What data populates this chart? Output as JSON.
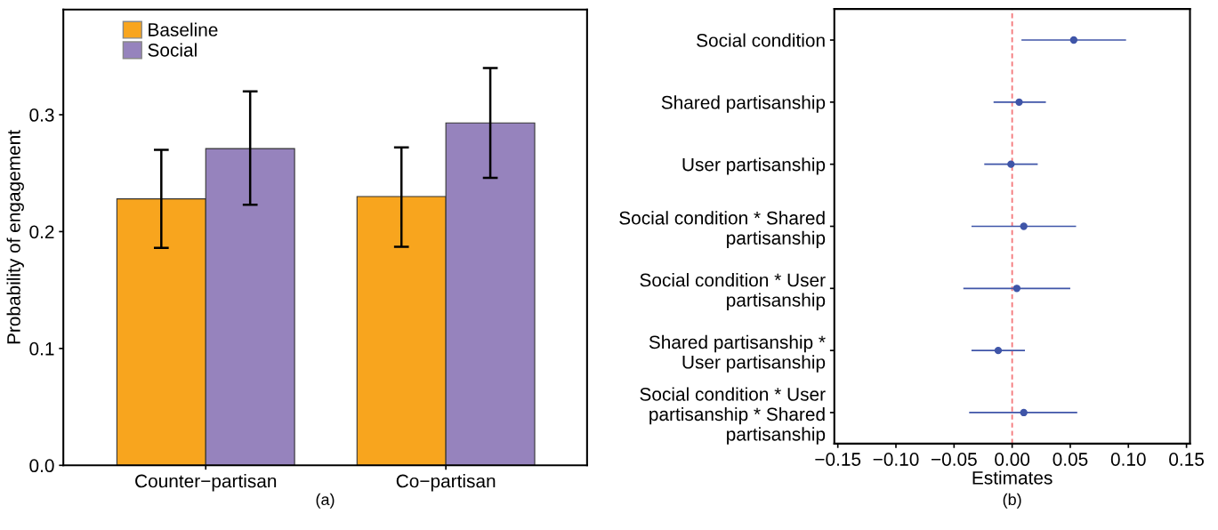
{
  "chart_data": [
    {
      "type": "bar",
      "categories": [
        "Counter−partisan",
        "Co−partisan"
      ],
      "ylabel": "Probability of engagement",
      "ylim": [
        0,
        0.39
      ],
      "yticks": [
        {
          "value": 0,
          "label": "0.0"
        },
        0.1,
        0.2,
        0.3
      ],
      "grid": false,
      "legend": "top left",
      "series": [
        {
          "name": "Baseline",
          "color": "#f8a51e",
          "values": [
            0.228,
            0.23
          ],
          "errors": [
            [
              0.186,
              0.27
            ],
            [
              0.187,
              0.272
            ]
          ]
        },
        {
          "name": "Social",
          "color": "#9683bd",
          "values": [
            0.271,
            0.293
          ],
          "errors": [
            [
              0.223,
              0.32
            ],
            [
              0.246,
              0.34
            ]
          ]
        }
      ],
      "annotations": [
        "(a)"
      ]
    },
    {
      "type": "scatter",
      "orientation": "horizontal",
      "categories": [
        "Social condition",
        "Shared partisanship",
        "User partisanship",
        "Social condition * Shared\npartisanship",
        "Social condition * User\npartisanship",
        "Shared partisanship *\nUser partisanship",
        "Social condition * User\npartisanship * Shared\npartisanship"
      ],
      "xlabel": "Estimates",
      "xlim": [
        -0.153,
        0.153
      ],
      "xticks": [
        {
          "value": -0.15,
          "label": "−0.15"
        },
        {
          "value": -0.1,
          "label": "−0.10"
        },
        {
          "value": -0.05,
          "label": "−0.05"
        },
        {
          "value": 0,
          "label": "0.00"
        },
        0.05,
        {
          "value": 0.1,
          "label": "0.10"
        },
        0.15
      ],
      "grid": false,
      "marker": "circle",
      "series": [
        {
          "color": "#3f55a8",
          "values": [
            0.053,
            0.006,
            -0.001,
            0.01,
            0.004,
            -0.012,
            0.01
          ],
          "errors": [
            [
              0.008,
              0.098
            ],
            [
              -0.016,
              0.029
            ],
            [
              -0.024,
              0.022
            ],
            [
              -0.035,
              0.055
            ],
            [
              -0.042,
              0.05
            ],
            [
              -0.035,
              0.011
            ],
            [
              -0.037,
              0.056
            ]
          ]
        }
      ],
      "ref_lines": [
        {
          "axis": "x",
          "value": 0,
          "color": "#f4777a",
          "line_style": "dashed"
        }
      ],
      "annotations": [
        "(b)"
      ]
    }
  ]
}
